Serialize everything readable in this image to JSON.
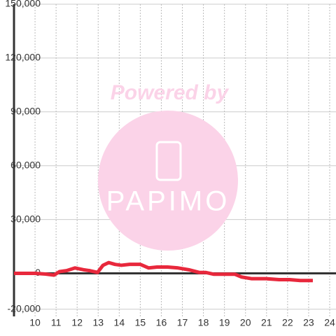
{
  "chart_data": {
    "type": "line",
    "watermark": {
      "top": "Powered by",
      "logo": "PAPIMO"
    },
    "x": [
      9,
      10,
      10.5,
      10.9,
      11.17,
      11.5,
      11.9,
      12.3,
      12.6,
      12.97,
      13.23,
      13.5,
      13.8,
      14.1,
      14.5,
      15,
      15.4,
      15.8,
      16.3,
      16.8,
      17.3,
      17.8,
      18.1,
      18.5,
      19,
      19.5,
      19.8,
      20.3,
      21,
      21.6,
      22.1,
      22.6,
      23.2
    ],
    "series": [
      {
        "color": "#e8283c",
        "values": [
          0,
          0,
          -400,
          -1000,
          1000,
          1500,
          3000,
          2000,
          1500,
          500,
          4500,
          6000,
          5000,
          4500,
          5000,
          5000,
          3000,
          3500,
          3500,
          3000,
          2000,
          500,
          500,
          -500,
          -500,
          -500,
          -2000,
          -3000,
          -3000,
          -3500,
          -3500,
          -4000,
          -4000
        ]
      }
    ],
    "xlim": [
      9,
      24.3
    ],
    "xticks": [
      10,
      11,
      12,
      13,
      14,
      15,
      16,
      17,
      18,
      19,
      20,
      21,
      22,
      23,
      24
    ],
    "ylim": [
      -24000,
      150000
    ],
    "yticks": [
      {
        "value": 150000,
        "label": "150,000"
      },
      {
        "value": 120000,
        "label": "120,000"
      },
      {
        "value": 90000,
        "label": "90,000"
      },
      {
        "value": 60000,
        "label": "60,000"
      },
      {
        "value": 30000,
        "label": "30,000"
      },
      0,
      {
        "value": -20000,
        "label": "-20,000"
      }
    ],
    "grid": true
  }
}
